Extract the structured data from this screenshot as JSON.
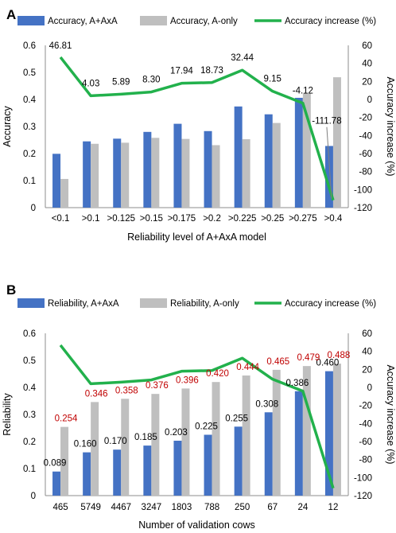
{
  "chart_data": [
    {
      "panel_label": "A",
      "type": "bar",
      "categories": [
        "<0.1",
        ">0.1",
        ">0.125",
        ">0.15",
        ">0.175",
        ">0.2",
        ">0.225",
        ">0.25",
        ">0.275",
        ">0.4"
      ],
      "series": [
        {
          "name": "Accuracy, A+AxA",
          "type": "bar",
          "axis": "left",
          "color": "#4472c4",
          "values": [
            0.199,
            0.245,
            0.255,
            0.28,
            0.31,
            0.283,
            0.374,
            0.345,
            0.406,
            0.228
          ]
        },
        {
          "name": "Accuracy, A-only",
          "type": "bar",
          "axis": "left",
          "color": "#bfbfbf",
          "values": [
            0.106,
            0.236,
            0.24,
            0.258,
            0.254,
            0.231,
            0.253,
            0.313,
            0.423,
            0.482
          ]
        },
        {
          "name": "Accuracy increase (%)",
          "type": "line",
          "axis": "right",
          "color": "#22b14c",
          "values": [
            46.81,
            4.03,
            5.89,
            8.3,
            17.94,
            18.73,
            32.44,
            9.15,
            -4.12,
            -111.78
          ]
        }
      ],
      "line_labels": [
        "46.81",
        "4.03",
        "5.89",
        "8.30",
        "17.94",
        "18.73",
        "32.44",
        "9.15",
        "-4.12",
        "-111.78"
      ],
      "xlabel": "Reliability level of A+AxA model",
      "ylabel": "Accuracy",
      "y2label": "Accuracy increase (%)",
      "ylim": [
        0,
        0.6
      ],
      "y2lim": [
        -120,
        60
      ],
      "yticks": [
        "0",
        "0.1",
        "0.2",
        "0.3",
        "0.4",
        "0.5",
        "0.6"
      ],
      "y2ticks": [
        "-120",
        "-100",
        "-80",
        "-60",
        "-40",
        "-20",
        "0",
        "20",
        "40",
        "60"
      ],
      "grid": false,
      "legend": "top"
    },
    {
      "panel_label": "B",
      "type": "bar",
      "categories": [
        "465",
        "5749",
        "4467",
        "3247",
        "1803",
        "788",
        "250",
        "67",
        "24",
        "12"
      ],
      "series": [
        {
          "name": "Reliability, A+AxA",
          "type": "bar",
          "axis": "left",
          "color": "#4472c4",
          "values": [
            0.089,
            0.16,
            0.17,
            0.185,
            0.203,
            0.225,
            0.255,
            0.308,
            0.386,
            0.46
          ]
        },
        {
          "name": "Reliability, A-only",
          "type": "bar",
          "axis": "left",
          "color": "#bfbfbf",
          "values": [
            0.254,
            0.346,
            0.358,
            0.376,
            0.396,
            0.42,
            0.444,
            0.465,
            0.479,
            0.488
          ]
        },
        {
          "name": "Accuracy increase (%)",
          "type": "line",
          "axis": "right",
          "color": "#22b14c",
          "values": [
            46.81,
            4.03,
            5.89,
            8.3,
            17.94,
            18.73,
            32.44,
            9.15,
            -4.12,
            -111.78
          ]
        }
      ],
      "bar1_labels": [
        "0.089",
        "0.160",
        "0.170",
        "0.185",
        "0.203",
        "0.225",
        "0.255",
        "0.308",
        "0.386",
        "0.460"
      ],
      "bar2_labels": [
        "0.254",
        "0.346",
        "0.358",
        "0.376",
        "0.396",
        "0.420",
        "0.444",
        "0.465",
        "0.479",
        "0.488"
      ],
      "bar2_label_color": "#c00000",
      "xlabel": "Number of validation cows",
      "ylabel": "Reliability",
      "y2label": "Accuracy increase (%)",
      "ylim": [
        0,
        0.6
      ],
      "y2lim": [
        -120,
        60
      ],
      "yticks": [
        "0",
        "0.1",
        "0.2",
        "0.3",
        "0.4",
        "0.5",
        "0.6"
      ],
      "y2ticks": [
        "-120",
        "-100",
        "-80",
        "-60",
        "-40",
        "-20",
        "0",
        "20",
        "40",
        "60"
      ],
      "grid": false,
      "legend": "top"
    }
  ]
}
